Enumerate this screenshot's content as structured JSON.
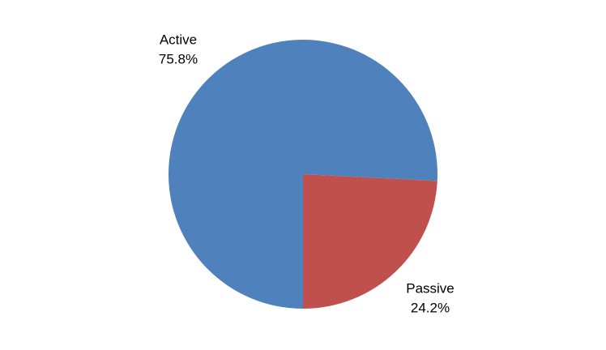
{
  "chart_data": {
    "type": "pie",
    "categories": [
      "Active",
      "Passive"
    ],
    "values": [
      75.8,
      24.2
    ],
    "value_labels": [
      "75.8%",
      "24.2%"
    ],
    "colors": [
      "#4f81bd",
      "#c0504d"
    ]
  }
}
